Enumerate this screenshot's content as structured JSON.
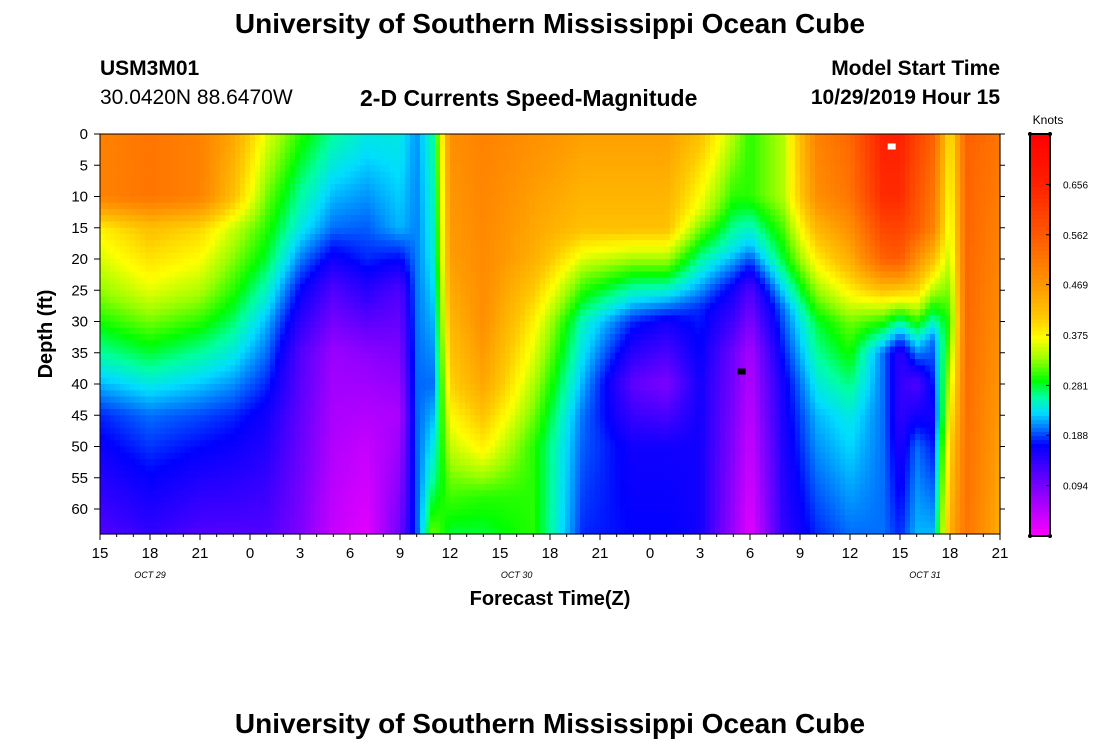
{
  "header": {
    "title_top": "University of Southern Mississippi Ocean Cube",
    "station_id": "USM3M01",
    "coordinates": "30.0420N 88.6470W",
    "plot_title": "2-D Currents Speed-Magnitude",
    "model_label": "Model Start Time",
    "model_time": "10/29/2019 Hour 15",
    "title_bottom": "University of Southern Mississippi Ocean Cube"
  },
  "chart_data": {
    "type": "heatmap",
    "title": "2-D Currents Speed-Magnitude",
    "xlabel": "Forecast Time(Z)",
    "ylabel": "Depth (ft)",
    "ylim": [
      0,
      64
    ],
    "x_tick_labels": [
      "15",
      "18",
      "21",
      "0",
      "3",
      "6",
      "9",
      "12",
      "15",
      "18",
      "21",
      "0",
      "3",
      "6",
      "9",
      "12",
      "15",
      "18",
      "21"
    ],
    "day_labels": [
      "OCT 29",
      "OCT 30",
      "OCT 31"
    ],
    "y_tick_labels": [
      "0",
      "5",
      "10",
      "15",
      "20",
      "25",
      "30",
      "35",
      "40",
      "45",
      "50",
      "55",
      "60"
    ],
    "y_ticks": [
      0,
      5,
      10,
      15,
      20,
      25,
      30,
      35,
      40,
      45,
      50,
      55,
      60
    ],
    "colorbar": {
      "unit_label": "Knots",
      "min": 0.0,
      "max": 0.75,
      "tick_labels": [
        "0.656",
        "0.562",
        "0.469",
        "0.375",
        "0.281",
        "0.188",
        "0.094"
      ],
      "tick_values": [
        0.656,
        0.562,
        0.469,
        0.375,
        0.281,
        0.188,
        0.094
      ]
    },
    "markers": [
      {
        "name": "max-marker",
        "color": "#ffffff",
        "hour": 47.5,
        "depth": 2
      },
      {
        "name": "min-marker",
        "color": "#000000",
        "hour": 38.5,
        "depth": 38
      }
    ],
    "speed_profiles": [
      {
        "hour": 0,
        "depths": [
          0,
          10,
          15,
          25,
          35,
          45,
          64
        ],
        "speeds": [
          0.5,
          0.5,
          0.38,
          0.33,
          0.26,
          0.18,
          0.12
        ]
      },
      {
        "hour": 3,
        "depths": [
          0,
          10,
          15,
          25,
          35,
          45,
          64
        ],
        "speeds": [
          0.52,
          0.52,
          0.42,
          0.36,
          0.28,
          0.2,
          0.14
        ]
      },
      {
        "hour": 6,
        "depths": [
          0,
          10,
          15,
          25,
          35,
          45,
          64
        ],
        "speeds": [
          0.5,
          0.5,
          0.4,
          0.34,
          0.26,
          0.19,
          0.12
        ]
      },
      {
        "hour": 8,
        "depths": [
          0,
          10,
          15,
          25,
          35,
          45,
          64
        ],
        "speeds": [
          0.45,
          0.42,
          0.35,
          0.3,
          0.24,
          0.18,
          0.12
        ]
      },
      {
        "hour": 10,
        "depths": [
          0,
          20,
          30,
          45,
          64
        ],
        "speeds": [
          0.36,
          0.28,
          0.22,
          0.16,
          0.12
        ]
      },
      {
        "hour": 12,
        "depths": [
          0,
          15,
          25,
          35,
          64
        ],
        "speeds": [
          0.3,
          0.24,
          0.17,
          0.12,
          0.09
        ]
      },
      {
        "hour": 14,
        "depths": [
          0,
          15,
          25,
          35,
          64
        ],
        "speeds": [
          0.26,
          0.2,
          0.12,
          0.07,
          0.04
        ]
      },
      {
        "hour": 16,
        "depths": [
          0,
          20,
          35,
          50,
          64
        ],
        "speeds": [
          0.24,
          0.18,
          0.08,
          0.04,
          0.02
        ]
      },
      {
        "hour": 18,
        "depths": [
          0,
          15,
          25,
          45,
          64
        ],
        "speeds": [
          0.24,
          0.22,
          0.12,
          0.06,
          0.1
        ]
      },
      {
        "hour": 19,
        "depths": [
          0,
          64
        ],
        "speeds": [
          0.21,
          0.19
        ]
      },
      {
        "hour": 20,
        "depths": [
          0,
          20,
          40,
          55,
          64
        ],
        "speeds": [
          0.26,
          0.24,
          0.2,
          0.26,
          0.32
        ]
      },
      {
        "hour": 21,
        "depths": [
          0,
          20,
          40,
          55,
          64
        ],
        "speeds": [
          0.48,
          0.46,
          0.4,
          0.32,
          0.28
        ]
      },
      {
        "hour": 23,
        "depths": [
          0,
          30,
          40,
          50,
          58,
          64
        ],
        "speeds": [
          0.5,
          0.48,
          0.45,
          0.38,
          0.3,
          0.28
        ]
      },
      {
        "hour": 26,
        "depths": [
          0,
          20,
          30,
          40,
          50,
          64
        ],
        "speeds": [
          0.48,
          0.44,
          0.38,
          0.34,
          0.3,
          0.3
        ]
      },
      {
        "hour": 29,
        "depths": [
          0,
          15,
          22,
          30,
          45,
          64
        ],
        "speeds": [
          0.46,
          0.42,
          0.33,
          0.25,
          0.2,
          0.18
        ]
      },
      {
        "hour": 32,
        "depths": [
          0,
          15,
          22,
          30,
          40,
          50,
          64
        ],
        "speeds": [
          0.46,
          0.42,
          0.3,
          0.18,
          0.11,
          0.16,
          0.17
        ]
      },
      {
        "hour": 34,
        "depths": [
          0,
          15,
          22,
          30,
          40,
          50,
          64
        ],
        "speeds": [
          0.46,
          0.42,
          0.3,
          0.16,
          0.09,
          0.16,
          0.17
        ]
      },
      {
        "hour": 36,
        "depths": [
          0,
          12,
          20,
          28,
          40,
          64
        ],
        "speeds": [
          0.42,
          0.36,
          0.26,
          0.18,
          0.16,
          0.16
        ]
      },
      {
        "hour": 38,
        "depths": [
          0,
          10,
          18,
          25,
          35,
          64
        ],
        "speeds": [
          0.34,
          0.3,
          0.24,
          0.16,
          0.1,
          0.07
        ]
      },
      {
        "hour": 39,
        "depths": [
          0,
          10,
          18,
          25,
          35,
          64
        ],
        "speeds": [
          0.3,
          0.3,
          0.22,
          0.12,
          0.06,
          0.02
        ]
      },
      {
        "hour": 41,
        "depths": [
          0,
          10,
          20,
          28,
          40,
          64
        ],
        "speeds": [
          0.34,
          0.34,
          0.28,
          0.2,
          0.16,
          0.14
        ]
      },
      {
        "hour": 43,
        "depths": [
          0,
          10,
          20,
          30,
          45,
          64
        ],
        "speeds": [
          0.5,
          0.48,
          0.38,
          0.28,
          0.22,
          0.18
        ]
      },
      {
        "hour": 45,
        "depths": [
          0,
          10,
          20,
          30,
          45,
          64
        ],
        "speeds": [
          0.54,
          0.52,
          0.44,
          0.32,
          0.24,
          0.2
        ]
      },
      {
        "hour": 47,
        "depths": [
          0,
          10,
          20,
          28,
          35,
          50,
          64
        ],
        "speeds": [
          0.66,
          0.64,
          0.55,
          0.34,
          0.2,
          0.2,
          0.2
        ]
      },
      {
        "hour": 48,
        "depths": [
          0,
          10,
          20,
          30,
          35,
          45,
          64
        ],
        "speeds": [
          0.66,
          0.64,
          0.56,
          0.26,
          0.14,
          0.14,
          0.18
        ]
      },
      {
        "hour": 49,
        "depths": [
          0,
          15,
          25,
          33,
          40,
          50,
          64
        ],
        "speeds": [
          0.6,
          0.56,
          0.4,
          0.24,
          0.12,
          0.2,
          0.22
        ]
      },
      {
        "hour": 50,
        "depths": [
          0,
          15,
          25,
          33,
          45,
          64
        ],
        "speeds": [
          0.55,
          0.5,
          0.34,
          0.2,
          0.16,
          0.22
        ]
      },
      {
        "hour": 51,
        "depths": [
          0,
          20,
          30,
          50,
          64
        ],
        "speeds": [
          0.38,
          0.34,
          0.3,
          0.4,
          0.44
        ]
      },
      {
        "hour": 52,
        "depths": [
          0,
          64
        ],
        "speeds": [
          0.55,
          0.52
        ]
      },
      {
        "hour": 54,
        "depths": [
          0,
          64
        ],
        "speeds": [
          0.52,
          0.44
        ]
      }
    ]
  }
}
